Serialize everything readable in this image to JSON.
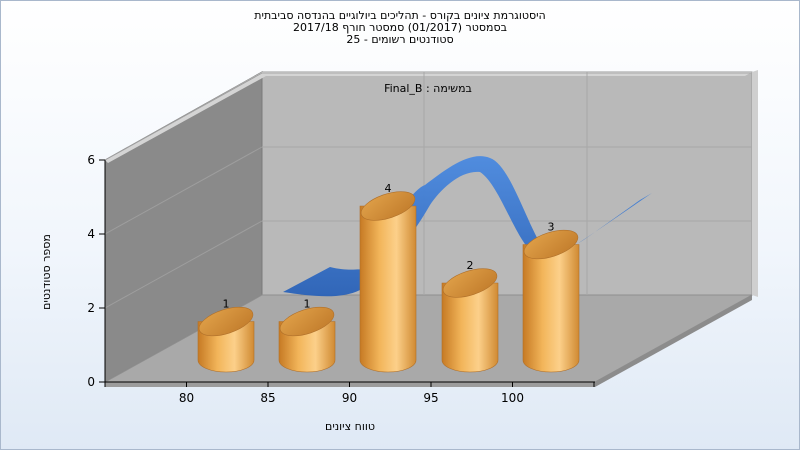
{
  "titles": {
    "line1": "היסטוגרמת ציונים בקורס - תהליכים ביולוגיים בהנדסה סביבתית",
    "line2": "בסמסטר  (01/2017)  סמסטר חורף 2017/18",
    "line3": "סטודנטים רשומים - 25"
  },
  "chart_data": {
    "type": "bar",
    "subtitle": "במשימה : Final_B",
    "xlabel": "טווח ציונים",
    "ylabel": "מספר סטודנטים",
    "categories": [
      "80",
      "85",
      "90",
      "95",
      "100"
    ],
    "values": [
      1,
      1,
      4,
      2,
      3
    ],
    "y_ticks": [
      "0",
      "2",
      "4",
      "6"
    ],
    "ylim": [
      0,
      6
    ],
    "grid": true,
    "colors": {
      "bars": "#e9a847",
      "ribbon": "#3a78d0",
      "back_wall": "#b9b9b9",
      "side_wall": "#8a8a8a",
      "floor": "#a9a9a9"
    }
  }
}
